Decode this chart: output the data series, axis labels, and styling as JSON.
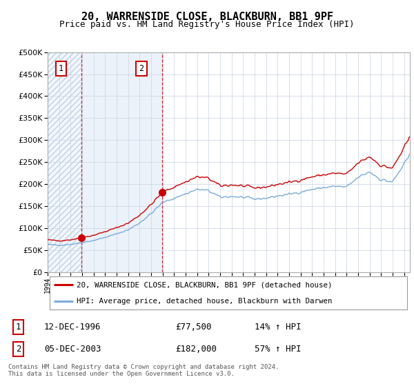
{
  "title": "20, WARRENSIDE CLOSE, BLACKBURN, BB1 9PF",
  "subtitle": "Price paid vs. HM Land Registry's House Price Index (HPI)",
  "sale1_year": 1996.958,
  "sale1_price": 77500,
  "sale2_year": 2003.958,
  "sale2_price": 182000,
  "legend_line1": "20, WARRENSIDE CLOSE, BLACKBURN, BB1 9PF (detached house)",
  "legend_line2": "HPI: Average price, detached house, Blackburn with Darwen",
  "footer": "Contains HM Land Registry data © Crown copyright and database right 2024.\nThis data is licensed under the Open Government Licence v3.0.",
  "table_row1": [
    "1",
    "12-DEC-1996",
    "£77,500",
    "14% ↑ HPI"
  ],
  "table_row2": [
    "2",
    "05-DEC-2003",
    "£182,000",
    "57% ↑ HPI"
  ],
  "hpi_color": "#7aabdc",
  "price_color": "#cc0000",
  "dashed_color": "#cc0000",
  "bg_hatch_color": "#dce9f5",
  "ylim": [
    0,
    500000
  ],
  "yticks": [
    0,
    50000,
    100000,
    150000,
    200000,
    250000,
    300000,
    350000,
    400000,
    450000,
    500000
  ],
  "xstart": 1994.0,
  "xend": 2025.5
}
